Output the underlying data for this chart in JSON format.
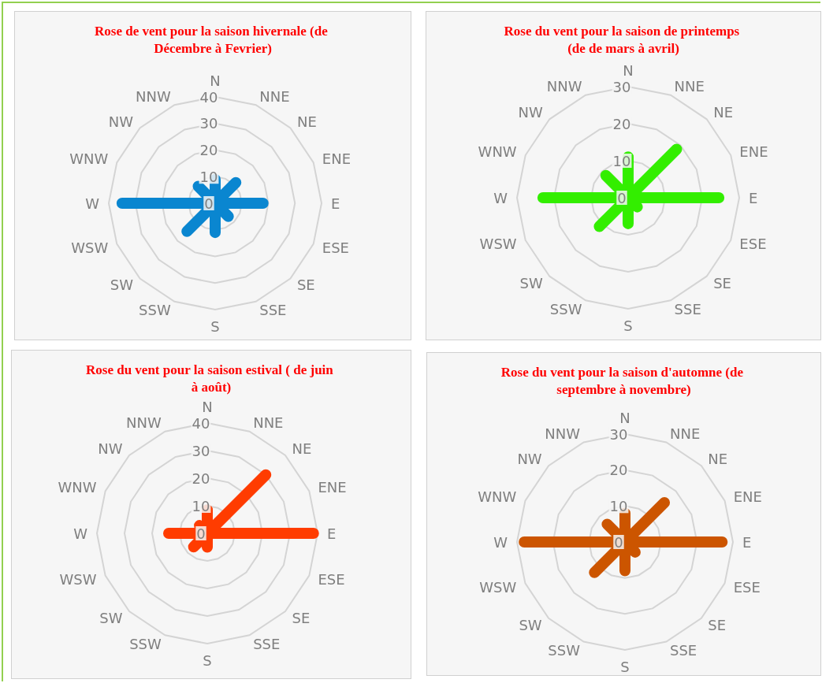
{
  "chart_data": [
    {
      "type": "radar",
      "title": "Rose de vent pour la saison hivernale (de Décembre à Fevrier)",
      "categories": [
        "N",
        "NNE",
        "NE",
        "ENE",
        "E",
        "ESE",
        "SE",
        "SSE",
        "S",
        "SSW",
        "SW",
        "WSW",
        "W",
        "WNW",
        "NW",
        "NNW"
      ],
      "series": [
        {
          "color": "#0a86d0",
          "values": [
            9,
            0,
            11,
            0,
            18,
            0,
            7,
            0,
            11,
            0,
            15,
            0,
            35,
            0,
            9,
            0
          ]
        }
      ],
      "ylim": [
        0,
        40
      ],
      "yticks": [
        0,
        10,
        20,
        30,
        40
      ],
      "grid": true,
      "marker": "none",
      "line_style": "solid"
    },
    {
      "type": "radar",
      "title": "Rose du vent pour la saison de printemps (de de mars à avril)",
      "categories": [
        "N",
        "NNE",
        "NE",
        "ENE",
        "E",
        "ESE",
        "SE",
        "SSE",
        "S",
        "SSW",
        "SW",
        "WSW",
        "W",
        "WNW",
        "NW",
        "NNW"
      ],
      "series": [
        {
          "color": "#33ee00",
          "values": [
            11,
            0,
            18.5,
            0,
            24.5,
            0,
            3.5,
            0,
            7,
            0,
            11,
            0,
            23,
            0,
            8.5,
            0
          ]
        }
      ],
      "ylim": [
        0,
        30
      ],
      "yticks": [
        0,
        10,
        20,
        30
      ],
      "grid": true,
      "marker": "none",
      "line_style": "solid"
    },
    {
      "type": "radar",
      "title": "Rose du vent pour la saison estival ( de juin à août)",
      "categories": [
        "N",
        "NNE",
        "NE",
        "ENE",
        "E",
        "ESE",
        "SE",
        "SSE",
        "S",
        "SSW",
        "SW",
        "WSW",
        "W",
        "WNW",
        "NW",
        "NNW"
      ],
      "series": [
        {
          "color": "#ff3c00",
          "values": [
            8.5,
            0,
            30,
            0,
            38.5,
            0,
            0,
            0,
            5,
            0,
            7,
            0,
            14,
            0,
            4,
            0
          ]
        }
      ],
      "ylim": [
        0,
        40
      ],
      "yticks": [
        0,
        10,
        20,
        30,
        40
      ],
      "grid": true,
      "marker": "none",
      "line_style": "solid"
    },
    {
      "type": "radar",
      "title": "Rose du vent pour la saison d'automne (de septembre à novembre)",
      "categories": [
        "N",
        "NNE",
        "NE",
        "ENE",
        "E",
        "ESE",
        "SE",
        "SSE",
        "S",
        "SSW",
        "SW",
        "WSW",
        "W",
        "WNW",
        "NW",
        "NNW"
      ],
      "series": [
        {
          "color": "#cc5500",
          "values": [
            8,
            0,
            15.5,
            0,
            27,
            0,
            4,
            0,
            8,
            0,
            12,
            0,
            28,
            0,
            7,
            0
          ]
        }
      ],
      "ylim": [
        0,
        30
      ],
      "yticks": [
        0,
        10,
        20,
        30
      ],
      "grid": true,
      "marker": "none",
      "line_style": "solid"
    }
  ]
}
